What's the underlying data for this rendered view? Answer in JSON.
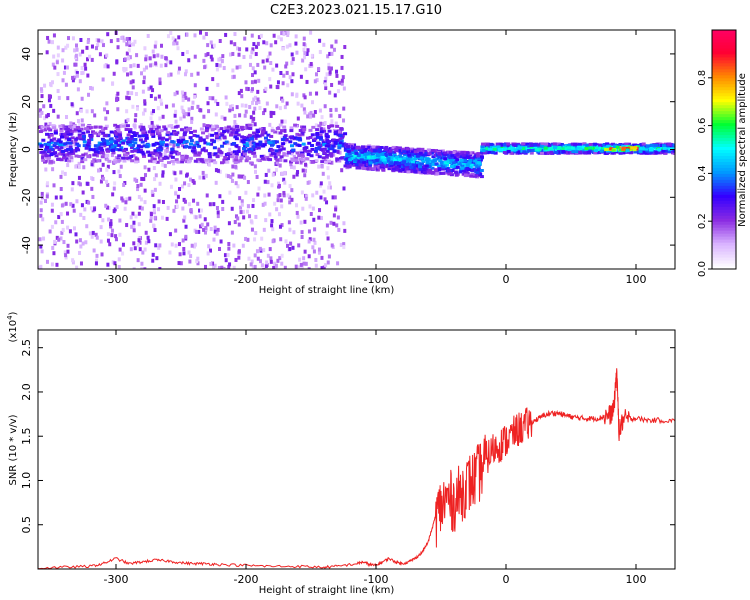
{
  "chart_data": [
    {
      "type": "heatmap",
      "title": "C2E3.2023.021.15.17.G10",
      "xlabel": "Height of straight line (km)",
      "ylabel": "Frequency (Hz)",
      "xlim": [
        -360,
        130
      ],
      "ylim": [
        -50,
        50
      ],
      "x_ticks": [
        -300,
        -200,
        -100,
        0,
        100
      ],
      "y_ticks": [
        -40,
        -20,
        0,
        20,
        40
      ],
      "grid": false,
      "colorbar": {
        "label": "Normalized spectral amplitude",
        "range": [
          0,
          1
        ],
        "ticks": [
          "0.0",
          "0.2",
          "0.4",
          "0.6",
          "0.8"
        ],
        "colors": [
          "#ffffff",
          "#d9b3ff",
          "#8a2be2",
          "#3300ff",
          "#0099ff",
          "#00ffff",
          "#00ff33",
          "#ffff00",
          "#ff8800",
          "#ff0033",
          "#ff0066"
        ]
      },
      "features": [
        {
          "x_range": [
            -360,
            -125
          ],
          "y_center": 3,
          "y_halfwidth": 8,
          "level": 0.35
        },
        {
          "x_range": [
            -125,
            -20
          ],
          "y_center": -3,
          "y_halfwidth": 5,
          "level": 0.45
        },
        {
          "x_range": [
            -20,
            130
          ],
          "y_center": 1,
          "y_halfwidth": 2,
          "level": 0.55
        },
        {
          "x_range": [
            75,
            100
          ],
          "y_center": 1,
          "y_halfwidth": 1,
          "level": 0.95
        }
      ]
    },
    {
      "type": "line",
      "title": "",
      "xlabel": "Height of straight line (km)",
      "ylabel": "SNR (10 * v/v)",
      "y_multiplier": "(x10^4)",
      "xlim": [
        -360,
        130
      ],
      "ylim": [
        0,
        2.7
      ],
      "x_ticks": [
        -300,
        -200,
        -100,
        0,
        100
      ],
      "y_ticks": [
        0.5,
        1.0,
        1.5,
        2.0,
        2.5
      ],
      "grid": false,
      "series": [
        {
          "color": "#ee2222",
          "x": [
            -360,
            -340,
            -320,
            -310,
            -300,
            -290,
            -280,
            -270,
            -260,
            -250,
            -240,
            -230,
            -220,
            -200,
            -180,
            -160,
            -140,
            -130,
            -115,
            -110,
            -105,
            -100,
            -95,
            -90,
            -85,
            -80,
            -75,
            -70,
            -65,
            -60,
            -55,
            -50,
            -45,
            -40,
            -35,
            -30,
            -25,
            -20,
            -15,
            -10,
            -5,
            0,
            5,
            10,
            15,
            20,
            25,
            30,
            35,
            40,
            45,
            50,
            55,
            60,
            65,
            70,
            75,
            80,
            83,
            85,
            87,
            90,
            95,
            100,
            110,
            120,
            130
          ],
          "y": [
            0.01,
            0.02,
            0.03,
            0.06,
            0.12,
            0.06,
            0.08,
            0.1,
            0.09,
            0.07,
            0.06,
            0.06,
            0.05,
            0.04,
            0.03,
            0.03,
            0.02,
            0.03,
            0.06,
            0.08,
            0.05,
            0.04,
            0.08,
            0.12,
            0.08,
            0.06,
            0.08,
            0.12,
            0.18,
            0.3,
            0.55,
            0.7,
            0.8,
            0.75,
            0.85,
            0.95,
            1.0,
            1.1,
            1.25,
            1.35,
            1.4,
            1.45,
            1.52,
            1.58,
            1.62,
            1.66,
            1.7,
            1.74,
            1.76,
            1.76,
            1.74,
            1.72,
            1.71,
            1.7,
            1.7,
            1.7,
            1.72,
            1.74,
            1.8,
            2.25,
            1.55,
            1.68,
            1.7,
            1.7,
            1.68,
            1.68,
            1.67
          ]
        }
      ]
    }
  ]
}
